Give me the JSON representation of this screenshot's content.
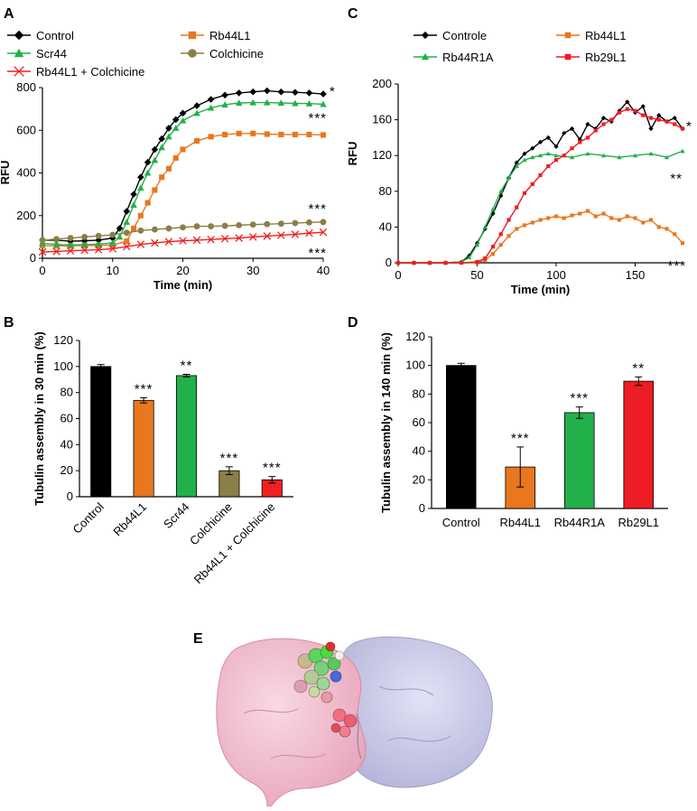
{
  "panels": {
    "A": "A",
    "B": "B",
    "C": "C",
    "D": "D",
    "E": "E"
  },
  "colors": {
    "control": "#000000",
    "rb44l1": "#e8771e",
    "scr44": "#22b04b",
    "colchicine": "#8a7f46",
    "combo": "#f02020",
    "rb29l1": "#ee1c24"
  },
  "chart_data": [
    {
      "id": "A",
      "type": "line",
      "xlabel": "Time (min)",
      "ylabel": "RFU",
      "xlim": [
        0,
        40
      ],
      "ylim": [
        0,
        800
      ],
      "xticks": [
        0,
        10,
        20,
        30,
        40
      ],
      "yticks": [
        0,
        200,
        400,
        600,
        800
      ],
      "series": [
        {
          "name": "Control",
          "marker": "diamond",
          "x": [
            0,
            2,
            4,
            6,
            8,
            10,
            11,
            12,
            13,
            14,
            15,
            16,
            17,
            18,
            19,
            20,
            22,
            24,
            26,
            28,
            30,
            32,
            34,
            36,
            38,
            40
          ],
          "y": [
            85,
            85,
            80,
            82,
            85,
            95,
            140,
            220,
            300,
            380,
            450,
            510,
            560,
            610,
            650,
            680,
            715,
            745,
            765,
            775,
            780,
            785,
            780,
            778,
            775,
            770
          ],
          "sig": "*"
        },
        {
          "name": "Rb44L1",
          "marker": "square",
          "x": [
            0,
            2,
            4,
            6,
            8,
            10,
            12,
            13,
            14,
            15,
            16,
            17,
            18,
            19,
            20,
            22,
            24,
            26,
            28,
            30,
            32,
            34,
            36,
            38,
            40
          ],
          "y": [
            60,
            58,
            58,
            60,
            60,
            62,
            80,
            140,
            200,
            260,
            320,
            380,
            420,
            470,
            510,
            550,
            570,
            580,
            585,
            585,
            582,
            580,
            580,
            580,
            578
          ],
          "sig": "***"
        },
        {
          "name": "Scr44",
          "marker": "triangle",
          "x": [
            0,
            2,
            4,
            6,
            8,
            10,
            11,
            12,
            13,
            14,
            15,
            16,
            17,
            18,
            19,
            20,
            22,
            24,
            26,
            28,
            30,
            32,
            34,
            36,
            38,
            40
          ],
          "y": [
            70,
            65,
            62,
            64,
            66,
            72,
            100,
            170,
            250,
            330,
            400,
            460,
            520,
            570,
            610,
            645,
            680,
            705,
            720,
            728,
            730,
            730,
            728,
            726,
            725,
            722
          ],
          "sig": ""
        },
        {
          "name": "Colchicine",
          "marker": "circle",
          "x": [
            0,
            2,
            4,
            6,
            8,
            10,
            12,
            14,
            16,
            18,
            20,
            22,
            24,
            26,
            28,
            30,
            32,
            34,
            36,
            38,
            40
          ],
          "y": [
            85,
            90,
            95,
            100,
            105,
            110,
            120,
            130,
            135,
            140,
            145,
            150,
            150,
            152,
            155,
            158,
            160,
            162,
            165,
            168,
            170
          ],
          "sig": "***"
        },
        {
          "name": "Rb44L1 + Colchicine",
          "marker": "x",
          "x": [
            0,
            2,
            4,
            6,
            8,
            10,
            12,
            14,
            16,
            18,
            20,
            22,
            24,
            26,
            28,
            30,
            32,
            34,
            36,
            38,
            40
          ],
          "y": [
            30,
            32,
            35,
            38,
            40,
            45,
            55,
            65,
            72,
            78,
            82,
            85,
            88,
            92,
            95,
            100,
            104,
            108,
            112,
            118,
            122
          ],
          "sig": "***"
        }
      ]
    },
    {
      "id": "B",
      "type": "bar",
      "ylabel": "Tubulin assembly in 30 min (%)",
      "ylim": [
        0,
        120
      ],
      "yticks": [
        0,
        20,
        40,
        60,
        80,
        100,
        120
      ],
      "categories": [
        "Control",
        "Rb44L1",
        "Scr44",
        "Colchicine",
        "Rb44L1 + Colchicine"
      ],
      "values": [
        100,
        74,
        93,
        20,
        13
      ],
      "errors": [
        1.5,
        2,
        1,
        3,
        2.5
      ],
      "sig": [
        "",
        "***",
        "**",
        "***",
        "***"
      ]
    },
    {
      "id": "C",
      "type": "line",
      "xlabel": "Time (min)",
      "ylabel": "RFU",
      "xlim": [
        0,
        180
      ],
      "ylim": [
        0,
        200
      ],
      "xticks": [
        0,
        50,
        100,
        150
      ],
      "yticks": [
        0,
        40,
        80,
        120,
        160,
        200
      ],
      "series": [
        {
          "name": "Controle",
          "marker": "diamond",
          "x": [
            0,
            10,
            20,
            30,
            40,
            45,
            50,
            55,
            60,
            65,
            70,
            75,
            80,
            85,
            90,
            95,
            100,
            105,
            110,
            115,
            120,
            125,
            130,
            135,
            140,
            145,
            150,
            155,
            160,
            165,
            170,
            175,
            180
          ],
          "y": [
            0,
            0,
            0,
            0,
            1,
            8,
            22,
            38,
            55,
            75,
            95,
            112,
            122,
            128,
            135,
            140,
            130,
            145,
            150,
            138,
            155,
            150,
            162,
            158,
            170,
            180,
            168,
            175,
            150,
            165,
            158,
            162,
            150
          ],
          "sig": "*"
        },
        {
          "name": "Rb44L1",
          "marker": "square",
          "x": [
            0,
            10,
            20,
            30,
            40,
            50,
            55,
            60,
            65,
            70,
            75,
            80,
            85,
            90,
            95,
            100,
            105,
            110,
            115,
            120,
            125,
            130,
            135,
            140,
            145,
            150,
            155,
            160,
            165,
            170,
            175,
            180
          ],
          "y": [
            0,
            0,
            0,
            0,
            0,
            0,
            3,
            10,
            20,
            30,
            38,
            42,
            45,
            48,
            50,
            52,
            50,
            53,
            55,
            58,
            52,
            55,
            50,
            48,
            52,
            50,
            45,
            48,
            40,
            38,
            32,
            22
          ],
          "sig": "***"
        },
        {
          "name": "Rb44R1A",
          "marker": "triangle",
          "x": [
            0,
            10,
            20,
            30,
            40,
            45,
            50,
            55,
            60,
            65,
            70,
            75,
            80,
            85,
            90,
            95,
            100,
            110,
            120,
            130,
            140,
            150,
            160,
            170,
            180
          ],
          "y": [
            0,
            0,
            0,
            0,
            1,
            6,
            20,
            40,
            60,
            80,
            95,
            108,
            115,
            118,
            120,
            122,
            120,
            118,
            122,
            120,
            118,
            120,
            122,
            118,
            125
          ],
          "sig": "**"
        },
        {
          "name": "Rb29L1",
          "marker": "square",
          "x": [
            0,
            10,
            20,
            30,
            40,
            50,
            55,
            60,
            65,
            70,
            75,
            80,
            85,
            90,
            95,
            100,
            105,
            110,
            115,
            120,
            125,
            130,
            135,
            140,
            145,
            150,
            155,
            160,
            165,
            170,
            175,
            180
          ],
          "y": [
            0,
            0,
            0,
            0,
            0,
            1,
            5,
            18,
            32,
            48,
            62,
            78,
            88,
            98,
            108,
            115,
            120,
            128,
            135,
            140,
            148,
            155,
            160,
            168,
            172,
            170,
            165,
            162,
            160,
            158,
            155,
            150
          ],
          "sig": ""
        }
      ]
    },
    {
      "id": "D",
      "type": "bar",
      "ylabel": "Tubulin assembly in 140 min (%)",
      "ylim": [
        0,
        120
      ],
      "yticks": [
        0,
        20,
        40,
        60,
        80,
        100,
        120
      ],
      "categories": [
        "Control",
        "Rb44L1",
        "Rb44R1A",
        "Rb29L1"
      ],
      "values": [
        100,
        29,
        67,
        89
      ],
      "errors": [
        1.5,
        14,
        4,
        3
      ],
      "sig": [
        "",
        "***",
        "***",
        "**"
      ]
    }
  ],
  "figure_e": {
    "subject": "protein-surface-dimer"
  }
}
